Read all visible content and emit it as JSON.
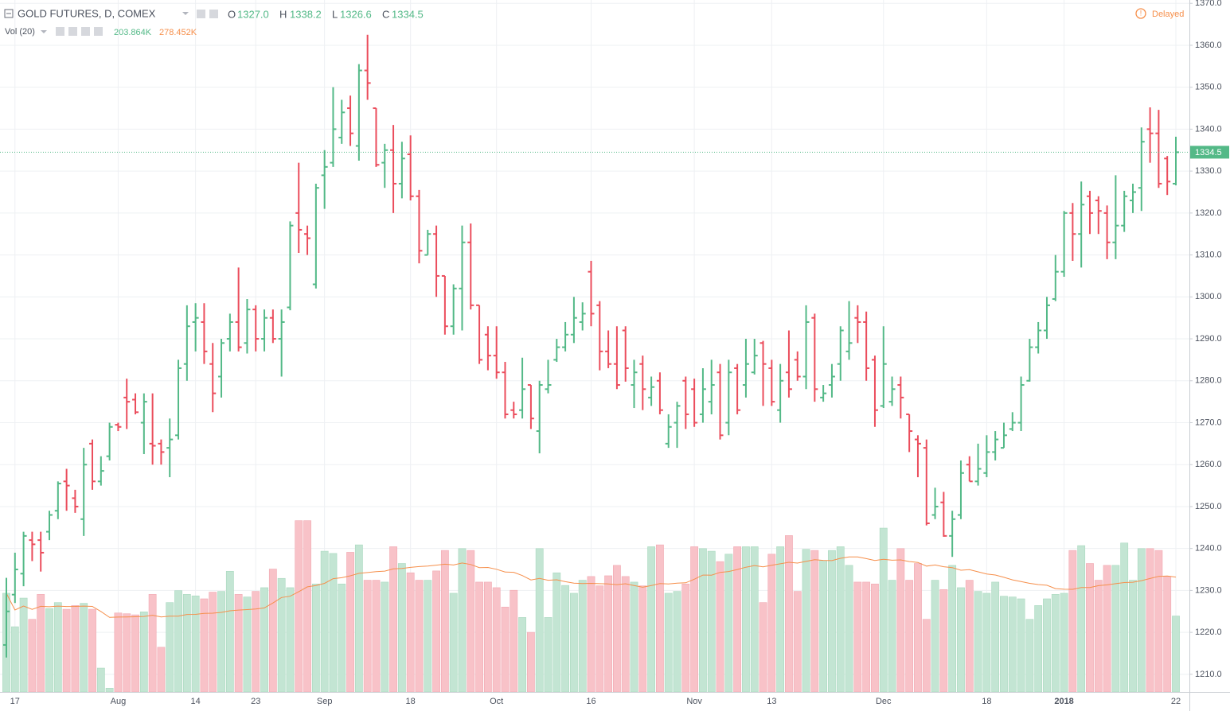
{
  "legend": {
    "title": "GOLD FUTURES, D, COMEX",
    "o_label": "O",
    "o": "1327.0",
    "h_label": "H",
    "h": "1338.2",
    "l_label": "L",
    "l": "1326.6",
    "c_label": "C",
    "c": "1334.5",
    "vol_title": "Vol (20)",
    "vol": "203.864K",
    "vol_ma": "278.452K",
    "status": "Delayed"
  },
  "chart_data": {
    "type": "ohlc",
    "up_color": "#53b987",
    "down_color": "#eb4d5c",
    "volume_up_color": "#c3e5d3",
    "volume_down_color": "#f8c2c8",
    "ma_color": "#f68f4b",
    "ma_period": 20,
    "grid": true,
    "categories": [
      null,
      "17",
      null,
      null,
      null,
      null,
      null,
      null,
      null,
      null,
      null,
      null,
      null,
      "Aug",
      null,
      null,
      null,
      null,
      null,
      null,
      null,
      null,
      "14",
      null,
      null,
      null,
      null,
      null,
      null,
      "23",
      null,
      null,
      null,
      null,
      null,
      null,
      null,
      "Sep",
      null,
      null,
      null,
      null,
      null,
      null,
      null,
      null,
      null,
      "18",
      null,
      null,
      null,
      null,
      null,
      null,
      null,
      null,
      null,
      "Oct",
      null,
      null,
      null,
      null,
      null,
      null,
      null,
      null,
      null,
      null,
      "16",
      null,
      null,
      null,
      null,
      null,
      null,
      null,
      null,
      null,
      null,
      null,
      "Nov",
      null,
      null,
      null,
      null,
      null,
      null,
      null,
      null,
      "13",
      null,
      null,
      null,
      null,
      null,
      null,
      null,
      null,
      null,
      null,
      null,
      null,
      "Dec",
      null,
      null,
      null,
      null,
      null,
      null,
      null,
      null,
      null,
      null,
      null,
      "18",
      null,
      null,
      null,
      null,
      null,
      null,
      null,
      null,
      "2018",
      null,
      null,
      null,
      null,
      null,
      null,
      null,
      null,
      null,
      null,
      null,
      null,
      "22"
    ],
    "open": [
      1217,
      1229,
      1234,
      1242,
      1242,
      1244,
      1249,
      1256,
      1252,
      1247,
      1265,
      1256,
      1262,
      1269.5,
      1276,
      1275.5,
      1270,
      1265,
      1265,
      1264,
      1267,
      1284,
      1294,
      1294,
      1284,
      1281,
      1290,
      1294,
      1289,
      1297,
      1290,
      1295,
      1290,
      1297.5,
      1320,
      1315,
      1303,
      1329,
      1332,
      1338,
      1345,
      1336,
      1354,
      1345,
      1332,
      1335,
      1327,
      1334,
      1324,
      1310,
      1315,
      1305,
      1293,
      1302,
      1313,
      1298,
      1291,
      1286,
      1282,
      1273,
      1273,
      1279,
      1268,
      1278,
      1285,
      1288,
      1291,
      1294,
      1306,
      1298,
      1287,
      1284,
      1292,
      1279,
      1284,
      1276,
      1280,
      1265,
      1270,
      1280,
      1278,
      1272,
      1275,
      1282,
      1270,
      1283,
      1279,
      1282,
      1289,
      1283,
      1273,
      1282,
      1285,
      1281,
      1295,
      1276,
      1279,
      1284,
      1287,
      1295,
      1294,
      1285,
      1274,
      1275,
      1279,
      1272,
      1266,
      1264,
      1248,
      1251,
      1243,
      1248,
      1260,
      1256,
      1258,
      1263,
      1264,
      1268.5,
      1270,
      1280,
      1288,
      1292,
      1299.5,
      1306,
      1320,
      1315,
      1324,
      1323,
      1320,
      1313,
      1317,
      1323,
      1326,
      1340,
      1339,
      1333,
      1327
    ],
    "high": [
      1233,
      1239,
      1244,
      1244,
      1244,
      1249,
      1256,
      1259,
      1254,
      1264,
      1266,
      1262,
      1270,
      1270,
      1280.5,
      1277,
      1277,
      1277,
      1266,
      1271,
      1285,
      1298,
      1298.5,
      1298.5,
      1289,
      1290,
      1296,
      1307,
      1299.5,
      1298,
      1297,
      1297,
      1297,
      1318,
      1332,
      1317,
      1327,
      1335,
      1350,
      1347,
      1348,
      1355.5,
      1362.5,
      1345,
      1336.5,
      1341,
      1337,
      1338.5,
      1325.5,
      1316,
      1317,
      1305,
      1303,
      1317,
      1317.5,
      1298,
      1293,
      1293,
      1284.5,
      1275,
      1285.5,
      1279,
      1280,
      1285,
      1290,
      1294,
      1300,
      1298.7,
      1308.6,
      1299,
      1292,
      1293,
      1293,
      1285,
      1286,
      1281,
      1282,
      1272,
      1275,
      1281,
      1280.5,
      1283,
      1285,
      1284,
      1285,
      1284,
      1290,
      1290,
      1289.5,
      1285,
      1284,
      1292,
      1287,
      1298,
      1296,
      1279,
      1284,
      1293,
      1299,
      1298,
      1296.5,
      1286,
      1293,
      1281,
      1281,
      1272,
      1267,
      1266,
      1254.5,
      1253.5,
      1249,
      1261,
      1262,
      1265,
      1267,
      1268,
      1270,
      1272.5,
      1281,
      1290,
      1294,
      1300,
      1310,
      1320.5,
      1322.4,
      1327.5,
      1325.3,
      1324,
      1321.8,
      1329,
      1325.3,
      1327,
      1340.4,
      1345.2,
      1344.6,
      1333.6,
      1338.2
    ],
    "low": [
      1214,
      1227,
      1231,
      1237,
      1234.5,
      1242,
      1247,
      1249,
      1248.5,
      1243,
      1254,
      1255,
      1261,
      1268,
      1268.5,
      1272,
      1262.5,
      1260,
      1260,
      1257,
      1266,
      1280,
      1287,
      1284,
      1272.5,
      1276,
      1287,
      1287,
      1286.5,
      1287,
      1287,
      1289,
      1281,
      1296.8,
      1310.5,
      1310,
      1302,
      1321,
      1331,
      1336.5,
      1336,
      1332.5,
      1347,
      1331,
      1326,
      1320,
      1323.5,
      1323,
      1308,
      1310,
      1300,
      1291,
      1291,
      1292,
      1297,
      1284,
      1282.5,
      1280.5,
      1271,
      1271,
      1271,
      1268.5,
      1262.7,
      1277,
      1284.5,
      1287,
      1289,
      1292,
      1293,
      1282.5,
      1283,
      1278,
      1279.8,
      1273.5,
      1273,
      1274,
      1272,
      1264,
      1264,
      1268.5,
      1269,
      1270,
      1272,
      1266,
      1267,
      1272,
      1276,
      1281.5,
      1274,
      1274,
      1270,
      1276,
      1280,
      1278,
      1275,
      1275,
      1276,
      1280,
      1285,
      1289,
      1280,
      1269,
      1273.5,
      1274,
      1271,
      1263,
      1257,
      1245.5,
      1247,
      1242.8,
      1238,
      1247,
      1256,
      1255,
      1257,
      1261,
      1264,
      1268,
      1268,
      1279.8,
      1286.5,
      1290,
      1299,
      1304.8,
      1308.6,
      1307,
      1315,
      1315,
      1309,
      1309,
      1315.5,
      1320,
      1320.5,
      1332,
      1326,
      1324.3,
      1326.6
    ],
    "close": [
      1225,
      1235,
      1243,
      1241,
      1239,
      1248,
      1255.5,
      1255,
      1250,
      1260,
      1256,
      1258.5,
      1269,
      1269,
      1275,
      1272.5,
      1275,
      1264.5,
      1263,
      1266,
      1283,
      1293,
      1295,
      1287,
      1277,
      1289,
      1294,
      1288,
      1297,
      1290,
      1295,
      1290,
      1294,
      1317,
      1316,
      1314,
      1326,
      1331,
      1340,
      1344,
      1339,
      1354,
      1351,
      1331.5,
      1335,
      1327,
      1333,
      1324,
      1311,
      1315,
      1305,
      1293,
      1302,
      1313,
      1298,
      1285,
      1286,
      1282,
      1272,
      1272,
      1278,
      1271,
      1279,
      1279,
      1288,
      1291,
      1295,
      1296,
      1296,
      1287,
      1284,
      1279,
      1283,
      1282,
      1278,
      1278.5,
      1273,
      1269,
      1274,
      1272,
      1270,
      1278,
      1279,
      1267,
      1282,
      1273,
      1284,
      1286,
      1284,
      1275,
      1280,
      1278,
      1281,
      1294,
      1278,
      1277,
      1281,
      1292,
      1289,
      1294,
      1283,
      1273,
      1284,
      1278,
      1276,
      1268,
      1265,
      1246,
      1250,
      1243,
      1247,
      1258,
      1256,
      1259,
      1263,
      1266,
      1267,
      1270,
      1279,
      1288,
      1292,
      1298,
      1306,
      1320,
      1315,
      1322,
      1320,
      1320.5,
      1313,
      1317,
      1324,
      1325,
      1337,
      1339,
      1327,
      1327.5,
      1334.5
    ],
    "volume": [
      265,
      175,
      252,
      195,
      262,
      224,
      240,
      222,
      232,
      238,
      222,
      64,
      10,
      212,
      210,
      207,
      215,
      262,
      120,
      240,
      272,
      262,
      258,
      250,
      268,
      270,
      324,
      262,
      255,
      270,
      280,
      330,
      305,
      280,
      460,
      460,
      290,
      378,
      372,
      290,
      375,
      395,
      300,
      300,
      295,
      390,
      345,
      320,
      300,
      300,
      325,
      380,
      265,
      385,
      380,
      295,
      295,
      280,
      228,
      273,
      200,
      160,
      385,
      200,
      320,
      286,
      265,
      300,
      310,
      285,
      312,
      340,
      310,
      295,
      285,
      390,
      395,
      265,
      270,
      290,
      390,
      385,
      378,
      350,
      370,
      390,
      390,
      390,
      240,
      370,
      390,
      420,
      270,
      383,
      380,
      353,
      380,
      390,
      340,
      295,
      295,
      290,
      440,
      300,
      385,
      300,
      345,
      195,
      300,
      275,
      340,
      280,
      300,
      270,
      265,
      295,
      257,
      255,
      250,
      195,
      232,
      250,
      262,
      265,
      380,
      393,
      345,
      300,
      340,
      340,
      400,
      300,
      385,
      385,
      380,
      310,
      203.864
    ],
    "volume_lim": [
      0,
      470
    ],
    "ylim": [
      1205.8,
      1370.8
    ],
    "yticks": [
      {
        "value": 1210,
        "label": "1210.0"
      },
      {
        "value": 1220,
        "label": "1220.0"
      },
      {
        "value": 1230,
        "label": "1230.0"
      },
      {
        "value": 1240,
        "label": "1240.0"
      },
      {
        "value": 1250,
        "label": "1250.0"
      },
      {
        "value": 1260,
        "label": "1260.0"
      },
      {
        "value": 1270,
        "label": "1270.0"
      },
      {
        "value": 1280,
        "label": "1280.0"
      },
      {
        "value": 1290,
        "label": "1290.0"
      },
      {
        "value": 1300,
        "label": "1300.0"
      },
      {
        "value": 1310,
        "label": "1310.0"
      },
      {
        "value": 1320,
        "label": "1320.0"
      },
      {
        "value": 1330,
        "label": "1330.0"
      },
      {
        "value": 1340,
        "label": "1340.0"
      },
      {
        "value": 1350,
        "label": "1350.0"
      },
      {
        "value": 1360,
        "label": "1360.0"
      },
      {
        "value": 1370,
        "label": "1370.0"
      }
    ]
  }
}
